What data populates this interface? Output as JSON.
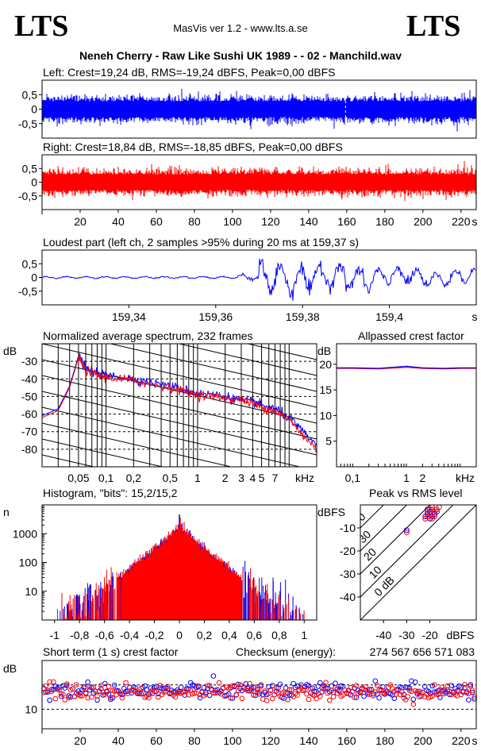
{
  "header": {
    "logo_left": "LTS",
    "logo_right": "LTS",
    "app": "MasVis ver 1.2 - www.lts.a.se",
    "title": "Neneh Cherry - Raw Like Sushi UK 1989 -  - 02 - Manchild.wav"
  },
  "colors": {
    "left": "#0000ff",
    "right": "#ff0000",
    "grid": "#000000",
    "background": "#ffffff"
  },
  "chart_data": [
    {
      "id": "left-waveform",
      "type": "area",
      "title": "Left: Crest=19,24 dB, RMS=-19,24 dBFS, Peak=0,00 dBFS",
      "ylim": [
        -1,
        1
      ],
      "yticks": [
        "0,5",
        "0",
        "-0,5"
      ],
      "ytick_values": [
        0.5,
        0,
        -0.5
      ],
      "duration_s": 228,
      "series": [
        {
          "name": "Left",
          "peak": 1.0,
          "rms": 0.109
        }
      ]
    },
    {
      "id": "right-waveform",
      "type": "area",
      "title": "Right: Crest=18,84 dB, RMS=-18,85 dBFS, Peak=0,00 dBFS",
      "ylim": [
        -1,
        1
      ],
      "yticks": [
        "0,5",
        "0",
        "-0,5"
      ],
      "ytick_values": [
        0.5,
        0,
        -0.5
      ],
      "xlim": [
        0,
        228
      ],
      "xticks": [
        "20",
        "40",
        "60",
        "80",
        "100",
        "120",
        "140",
        "160",
        "180",
        "200",
        "220",
        "s"
      ],
      "xtick_values": [
        20,
        40,
        60,
        80,
        100,
        120,
        140,
        160,
        180,
        200,
        220
      ],
      "series": [
        {
          "name": "Right",
          "peak": 1.0,
          "rms": 0.114
        }
      ]
    },
    {
      "id": "loudest-part",
      "type": "line",
      "title": "Loudest part (left  ch, 2 samples >95% during 20 ms at 159,37 s)",
      "xlim": [
        159.32,
        159.42
      ],
      "xticks": [
        "159,34",
        "159,36",
        "159,38",
        "159,4",
        "s"
      ],
      "xtick_values": [
        159.34,
        159.36,
        159.38,
        159.4
      ],
      "ylim": [
        -1,
        1
      ],
      "yticks": [
        "0,5",
        "0",
        "-0,5"
      ],
      "ytick_values": [
        0.5,
        0,
        -0.5
      ]
    },
    {
      "id": "spectrum",
      "type": "line",
      "title": "Normalized average spectrum, 232 frames",
      "ylabel": "dB",
      "xscale": "log",
      "xlim": [
        0.02,
        20
      ],
      "xticks": [
        "0,05",
        "0,1",
        "0,2",
        "0,5",
        "1",
        "2",
        "3",
        "4",
        "5",
        "7",
        "kHz"
      ],
      "xtick_values": [
        0.05,
        0.1,
        0.2,
        0.5,
        1,
        2,
        3,
        4,
        5,
        7
      ],
      "ylim": [
        -90,
        -20
      ],
      "yticks": [
        "-30",
        "-40",
        "-50",
        "-60",
        "-70",
        "-80"
      ],
      "ytick_values": [
        -30,
        -40,
        -50,
        -60,
        -70,
        -80
      ],
      "x": [
        0.02,
        0.03,
        0.04,
        0.05,
        0.06,
        0.08,
        0.1,
        0.15,
        0.2,
        0.3,
        0.5,
        0.7,
        1,
        1.5,
        2,
        3,
        4,
        5,
        7,
        10,
        14,
        20
      ],
      "series": [
        {
          "name": "Left",
          "values": [
            -61,
            -57,
            -44,
            -27,
            -34,
            -37,
            -38,
            -39,
            -40,
            -42,
            -44,
            -46,
            -48,
            -49,
            -50,
            -52,
            -53,
            -55,
            -57,
            -62,
            -70,
            -78
          ]
        },
        {
          "name": "Right",
          "values": [
            -62,
            -58,
            -45,
            -28,
            -35,
            -38,
            -39,
            -40,
            -41,
            -43,
            -45,
            -47,
            -49,
            -50,
            -51,
            -52,
            -54,
            -56,
            -58,
            -63,
            -72,
            -80
          ]
        }
      ]
    },
    {
      "id": "allpassed-crest",
      "type": "line",
      "title": "Allpassed crest factor",
      "ylabel": "dB",
      "xscale": "log",
      "xlim": [
        0.05,
        20
      ],
      "xticks": [
        "0,1",
        "1",
        "2",
        "kHz"
      ],
      "xtick_values": [
        0.1,
        1,
        2
      ],
      "ylim": [
        0,
        24
      ],
      "yticks": [
        "20",
        "15",
        "10",
        "5"
      ],
      "ytick_values": [
        20,
        15,
        10,
        5
      ],
      "x": [
        0.05,
        0.1,
        0.3,
        1,
        2,
        5,
        10,
        20
      ],
      "series": [
        {
          "name": "Left",
          "values": [
            19.3,
            19.3,
            19.2,
            19.6,
            19.3,
            19.2,
            19.3,
            19.3
          ]
        },
        {
          "name": "Right",
          "values": [
            19.2,
            19.2,
            19.1,
            19.4,
            19.2,
            19.1,
            19.2,
            19.2
          ]
        }
      ]
    },
    {
      "id": "histogram",
      "type": "bar",
      "title": "Histogram, \"bits\": 15,2/15,2",
      "ylabel": "n",
      "yscale": "log",
      "xlim": [
        -1.1,
        1.1
      ],
      "xticks": [
        "-1",
        "-0,8",
        "-0,6",
        "-0,4",
        "-0,2",
        "0",
        "0,2",
        "0,4",
        "0,6",
        "0,8",
        "1"
      ],
      "xtick_values": [
        -1,
        -0.8,
        -0.6,
        -0.4,
        -0.2,
        0,
        0.2,
        0.4,
        0.6,
        0.8,
        1
      ],
      "ylim": [
        1,
        10000
      ],
      "yticks": [
        "1000",
        "100",
        "10"
      ],
      "ytick_values": [
        1000,
        100,
        10
      ],
      "x": [
        -1,
        -0.8,
        -0.6,
        -0.4,
        -0.2,
        0,
        0.2,
        0.4,
        0.6,
        0.8,
        1
      ],
      "series": [
        {
          "name": "Left",
          "values": [
            1,
            3,
            10,
            60,
            300,
            1800,
            300,
            60,
            10,
            3,
            1
          ]
        },
        {
          "name": "Right",
          "values": [
            1,
            3,
            11,
            65,
            310,
            1800,
            310,
            62,
            11,
            3,
            1
          ]
        }
      ]
    },
    {
      "id": "peak-vs-rms",
      "type": "scatter",
      "title": "Peak vs RMS level",
      "ylabel": "dBFS",
      "xlabel": "dBFS",
      "xlim": [
        -50,
        0
      ],
      "xticks": [
        "-40",
        "-30",
        "-20",
        "dBFS"
      ],
      "xtick_values": [
        -40,
        -30,
        -20
      ],
      "ylim": [
        -50,
        0
      ],
      "yticks": [
        "-10",
        "-20",
        "-30",
        "-40"
      ],
      "ytick_values": [
        -10,
        -20,
        -30,
        -40
      ],
      "crest_lines": [
        "40",
        "30",
        "20",
        "10",
        "0 dB"
      ],
      "crest_line_values": [
        40,
        30,
        20,
        10,
        0
      ],
      "series": [
        {
          "name": "Left",
          "points": [
            [
              -30,
              -11
            ],
            [
              -22,
              -5
            ],
            [
              -21,
              -4
            ],
            [
              -20,
              -3
            ],
            [
              -19,
              -2
            ],
            [
              -18,
              -4
            ],
            [
              -20,
              -6
            ],
            [
              -17,
              -3
            ],
            [
              -21,
              -2
            ],
            [
              -19,
              -5
            ]
          ]
        },
        {
          "name": "Right",
          "points": [
            [
              -30,
              -12
            ],
            [
              -22,
              -6
            ],
            [
              -21,
              -5
            ],
            [
              -20,
              -2
            ],
            [
              -19,
              -1
            ],
            [
              -18,
              -3
            ],
            [
              -20,
              -4
            ],
            [
              -17,
              -2
            ],
            [
              -21,
              -3
            ],
            [
              -19,
              -6
            ],
            [
              -18,
              -5
            ],
            [
              -16,
              -1
            ]
          ]
        }
      ]
    },
    {
      "id": "short-term-crest",
      "type": "scatter",
      "title": "Short term (1 s) crest factor",
      "ylabel": "dB",
      "checksum_label": "Checksum (energy):",
      "checksum_value": "274 567 656 571 083",
      "xlim": [
        0,
        228
      ],
      "xticks": [
        "20",
        "40",
        "60",
        "80",
        "100",
        "120",
        "140",
        "160",
        "180",
        "200",
        "220",
        "s"
      ],
      "xtick_values": [
        20,
        40,
        60,
        80,
        100,
        120,
        140,
        160,
        180,
        200,
        220
      ],
      "ylim": [
        6,
        20
      ],
      "yticks": [
        "10"
      ],
      "ytick_values": [
        10
      ],
      "dashed_lines": [
        10,
        15
      ],
      "series": [
        {
          "name": "Left",
          "mean": 13.8,
          "spread": 1.4
        },
        {
          "name": "Right",
          "mean": 13.6,
          "spread": 1.4
        }
      ]
    }
  ]
}
